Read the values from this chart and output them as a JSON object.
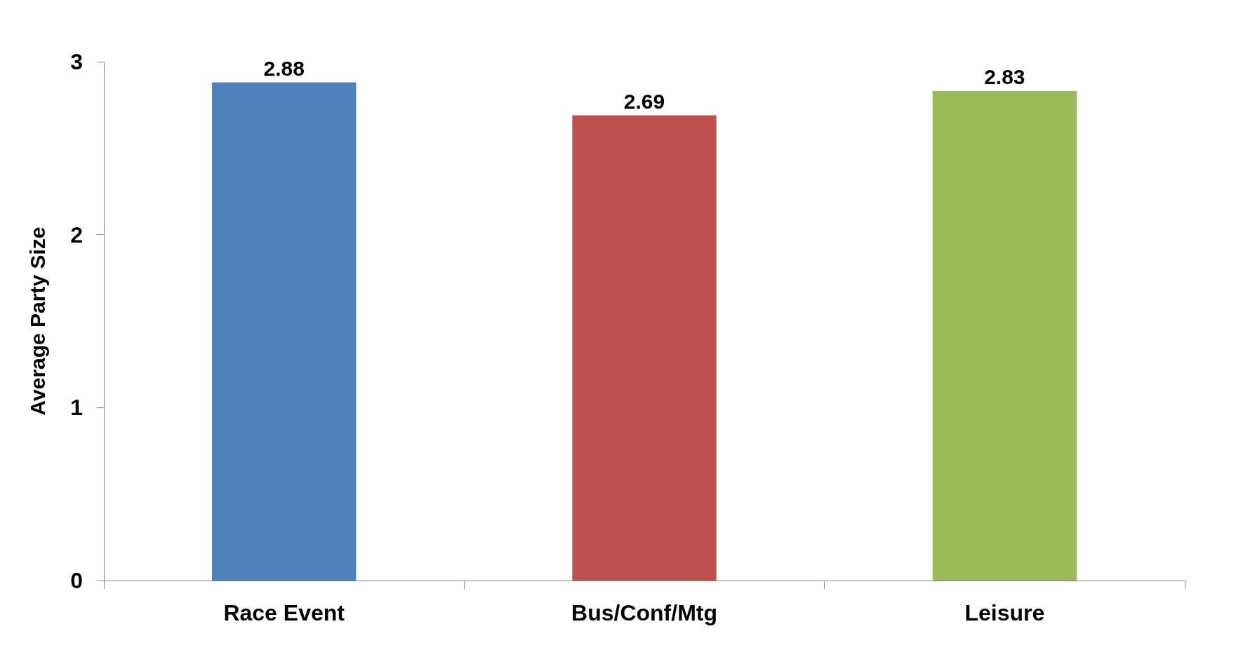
{
  "chart_data": {
    "type": "bar",
    "ylabel": "Average Party Size",
    "categories": [
      "Race Event",
      "Bus/Conf/Mtg",
      "Leisure"
    ],
    "values": [
      2.88,
      2.69,
      2.83
    ],
    "colors": [
      "#4f81bd",
      "#c0504d",
      "#9bbb59"
    ],
    "ylim": [
      0,
      3
    ],
    "yticks": [
      0,
      1,
      2,
      3
    ],
    "grid": false,
    "data_labels": true
  }
}
